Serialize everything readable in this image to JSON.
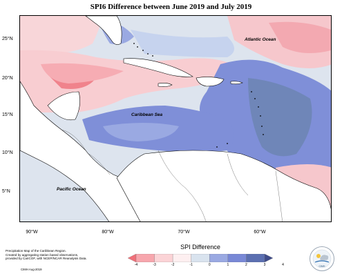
{
  "title": "SPI6 Difference between June 2019 and July 2019",
  "map": {
    "lat_labels": [
      "25°N",
      "20°N",
      "15°N",
      "10°N",
      "5°N"
    ],
    "lon_labels": [
      "90°W",
      "80°W",
      "70°W",
      "60°W"
    ],
    "ocean_labels": {
      "atlantic": "Atlantic Ocean",
      "caribbean": "Caribbean Sea",
      "pacific": "Pacific Ocean"
    }
  },
  "legend": {
    "title": "SPI Difference",
    "ticks": [
      "-4",
      "-3",
      "-2",
      "-1",
      "0",
      "1",
      "2",
      "3",
      "4"
    ],
    "colors": [
      "#f07079",
      "#f7a6ad",
      "#fbd3d6",
      "#fdeff0",
      "#d9e3ee",
      "#9aa9e2",
      "#7888d6",
      "#5b6fb1",
      "#3f4c8a"
    ]
  },
  "credits": {
    "line1": "Precipitation Map of the Caribbean Region.",
    "line2": "Created by aggregating station based observations,",
    "line3": "provided by CariCOF, with NCEP/NCAR Reanalysis Data.",
    "stamp": "CIMH Aug-2019"
  },
  "logo": {
    "text": "CIMH"
  }
}
